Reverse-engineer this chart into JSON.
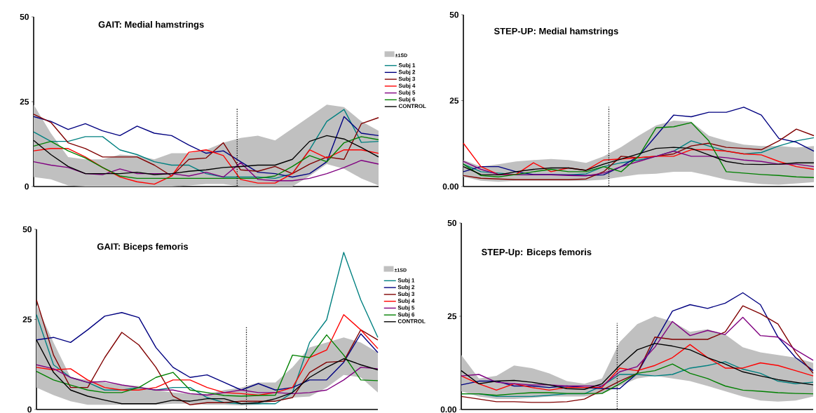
{
  "chart_data": [
    {
      "type": "line",
      "title": "GAIT: Medial hamstrings",
      "annotations": [
        "±1SD"
      ],
      "categories": [
        null,
        null,
        null,
        null,
        null,
        null,
        null,
        null,
        null,
        null,
        null,
        null,
        null,
        null,
        null,
        null,
        null,
        null,
        null,
        null,
        null
      ],
      "ylim": [
        0,
        50
      ],
      "yticks": [
        0,
        25,
        50
      ],
      "tick_labels": "y",
      "legend": "right",
      "series": [
        {
          "name": "Subj 1",
          "color": "#008080",
          "values": [
            16.1,
            13.3,
            13.3,
            14.7,
            14.7,
            10.8,
            9.4,
            7.3,
            6.3,
            6.3,
            3.8,
            2.8,
            2.8,
            2.8,
            2.4,
            3.8,
            10.8,
            19.2,
            22.7,
            13,
            13.3
          ]
        },
        {
          "name": "Subj 2",
          "color": "#000080",
          "values": [
            20.6,
            19.2,
            16.8,
            18.5,
            16.4,
            15,
            17.8,
            15.7,
            15,
            12.2,
            9.8,
            10.5,
            7.3,
            4.2,
            3.8,
            2.8,
            3.8,
            7.3,
            20.6,
            15.7,
            15
          ]
        },
        {
          "name": "Subj 3",
          "color": "#800000",
          "values": [
            21.3,
            18.9,
            12.9,
            11.2,
            8.7,
            8.7,
            8.7,
            6.3,
            3.1,
            8,
            8.4,
            12.9,
            4.9,
            4.5,
            5.9,
            3.8,
            6.6,
            8.7,
            8,
            18.5,
            20.3
          ]
        },
        {
          "name": "Subj 4",
          "color": "#ff0000",
          "values": [
            10.5,
            11.2,
            11.2,
            8.7,
            5.6,
            2.8,
            1.4,
            0.7,
            3.1,
            10.1,
            10.8,
            9.1,
            2.1,
            1,
            1,
            3.8,
            10.8,
            8.4,
            10.8,
            10.8,
            9.8
          ]
        },
        {
          "name": "Subj 5",
          "color": "#800080",
          "values": [
            7.3,
            6.3,
            5.6,
            3.8,
            3.5,
            5.2,
            3.8,
            3.8,
            3.8,
            3.1,
            4.2,
            2.8,
            7,
            2.1,
            1.7,
            1.7,
            2.4,
            3.8,
            5.6,
            7.7,
            6.6
          ]
        },
        {
          "name": "Subj 6",
          "color": "#008000",
          "values": [
            11.9,
            13.3,
            10.5,
            8.4,
            5.6,
            3.1,
            2.4,
            2.4,
            2.4,
            2.4,
            2.4,
            2.4,
            2.4,
            2.4,
            3.1,
            5.9,
            9.1,
            7.3,
            12.9,
            14.7,
            13.8
          ]
        },
        {
          "name": "CONTROL",
          "color": "#000000",
          "values": [
            13.6,
            9.4,
            5.9,
            3.8,
            3.8,
            3.8,
            4.2,
            3.5,
            3.8,
            4.5,
            4.9,
            5.6,
            5.9,
            6.3,
            6.3,
            8,
            13.3,
            15,
            14,
            11.5,
            8.7
          ],
          "upper": [
            24.1,
            15.7,
            8.7,
            8,
            8,
            9.4,
            9.1,
            8,
            9.8,
            9.8,
            10.8,
            12.9,
            14.3,
            15,
            13.6,
            17.1,
            20.6,
            24.1,
            23.4,
            19.2,
            16.4
          ],
          "lower": [
            2.8,
            2.1,
            0.3,
            0,
            0,
            0,
            0,
            0,
            0,
            0.3,
            0.7,
            0.7,
            0,
            0,
            0,
            0,
            3.1,
            6.6,
            5.2,
            2.4,
            0.3
          ]
        }
      ]
    },
    {
      "type": "line",
      "title": "STEP-UP: Medial hamstrings",
      "categories": [
        null,
        null,
        null,
        null,
        null,
        null,
        null,
        null,
        null,
        null,
        null,
        null,
        null,
        null,
        null,
        null,
        null,
        null,
        null,
        null,
        null
      ],
      "ylim": [
        0,
        50
      ],
      "yticks": [
        {
          "value": 0,
          "label": "0.00"
        },
        25,
        50
      ],
      "tick_labels": "y",
      "series": [
        {
          "color": "#008080",
          "values": [
            6.5,
            4.3,
            3.9,
            3.5,
            3.4,
            3.4,
            3.4,
            3.7,
            5.8,
            6.9,
            7.7,
            8.8,
            10.3,
            13.3,
            11.8,
            10.3,
            9.5,
            9.9,
            11.8,
            13.3,
            14.2
          ]
        },
        {
          "color": "#000080",
          "values": [
            4.3,
            5.8,
            5.8,
            4.3,
            3.5,
            3.5,
            3.4,
            3.2,
            3.4,
            5.8,
            8.8,
            14.8,
            20.8,
            20.3,
            21.6,
            21.6,
            23.1,
            20.8,
            14,
            12.9,
            10.3
          ]
        },
        {
          "color": "#800000",
          "values": [
            3.2,
            2.4,
            2.2,
            2,
            2,
            2,
            2,
            2.2,
            4.3,
            8.8,
            8.4,
            8.8,
            9.5,
            11.8,
            12.6,
            11.4,
            11.1,
            10.7,
            13.3,
            16.7,
            14.8
          ]
        },
        {
          "color": "#ff0000",
          "values": [
            12.6,
            5.8,
            3.5,
            3.5,
            6.9,
            4.3,
            5.4,
            4.7,
            7.7,
            8,
            8.4,
            8.8,
            8.8,
            10.7,
            10.7,
            10.3,
            9.5,
            9.2,
            7.3,
            5.8,
            5
          ]
        },
        {
          "color": "#800080",
          "values": [
            7.3,
            5,
            3.5,
            3.4,
            3.4,
            3.4,
            3.2,
            3.1,
            3.9,
            5.8,
            7.3,
            8.8,
            10.3,
            8.8,
            8.8,
            8.4,
            7.7,
            7.3,
            6.5,
            6.5,
            5.8
          ]
        },
        {
          "color": "#008000",
          "values": [
            6.5,
            3.2,
            2.8,
            3.5,
            4.3,
            5,
            4.3,
            4.3,
            5.8,
            4.3,
            8.8,
            17.1,
            17.4,
            18.6,
            13.3,
            4.3,
            3.9,
            3.5,
            3.2,
            2.8,
            2.6
          ]
        },
        {
          "color": "#000000",
          "values": [
            5.8,
            3.5,
            3.4,
            4.3,
            5,
            5.4,
            5.4,
            4.7,
            6.5,
            8,
            9.5,
            11.1,
            11.4,
            11.1,
            9.2,
            7.3,
            6.5,
            6.4,
            6.5,
            6.9,
            6.9
          ],
          "upper": [
            7.7,
            5.8,
            6.5,
            7.3,
            7.7,
            8,
            7.7,
            6.9,
            8.8,
            11.5,
            14.8,
            17.8,
            19.2,
            18.9,
            14.8,
            13.3,
            12.2,
            11.8,
            11.8,
            11.4,
            11.8
          ],
          "lower": [
            2.8,
            1.7,
            1.4,
            1.7,
            1.7,
            1.7,
            1.7,
            1.7,
            2,
            2.8,
            3.5,
            3.7,
            4.3,
            4.3,
            3.2,
            2,
            1.3,
            0.7,
            0.5,
            0.9,
            1.3
          ]
        }
      ]
    },
    {
      "type": "line",
      "title": "GAIT: Biceps femoris",
      "annotations": [
        "±1SD"
      ],
      "categories": [
        null,
        null,
        null,
        null,
        null,
        null,
        null,
        null,
        null,
        null,
        null,
        null,
        null,
        null,
        null,
        null,
        null,
        null,
        null,
        null,
        null
      ],
      "ylim": [
        0,
        50
      ],
      "yticks": [
        0,
        25,
        50
      ],
      "tick_labels": "y",
      "legend": "right",
      "series": [
        {
          "name": "Subj 1",
          "color": "#008080",
          "values": [
            26.3,
            12.4,
            8.9,
            7.5,
            5.4,
            5.4,
            6.1,
            5.4,
            6.1,
            6.1,
            3.3,
            1.9,
            1.6,
            1.6,
            1.6,
            4.7,
            18.6,
            24.9,
            43.6,
            30.4,
            20
          ]
        },
        {
          "name": "Subj 2",
          "color": "#000080",
          "values": [
            19.3,
            20,
            18.6,
            22.1,
            25.9,
            26.9,
            25.5,
            17.2,
            11.7,
            8.9,
            9.6,
            7.5,
            5.4,
            7.2,
            5.4,
            6.1,
            8.2,
            8.2,
            13.1,
            21,
            15.8
          ]
        },
        {
          "name": "Subj 3",
          "color": "#800000",
          "values": [
            30.4,
            15.1,
            6.1,
            6.1,
            14.4,
            21.4,
            17.9,
            11.7,
            3.7,
            1.3,
            1.9,
            1.9,
            2.3,
            2.3,
            2.3,
            3.3,
            10.3,
            13.1,
            13.4,
            22.1,
            19.3
          ]
        },
        {
          "name": "Subj 4",
          "color": "#ff0000",
          "values": [
            11.7,
            11,
            11.3,
            8.2,
            6.1,
            5.4,
            5.4,
            6.1,
            8.2,
            8.2,
            6.1,
            4.7,
            4.4,
            4,
            4.7,
            6.1,
            14.4,
            16.5,
            26.3,
            22.1,
            16.9
          ]
        },
        {
          "name": "Subj 5",
          "color": "#800080",
          "values": [
            12.4,
            11.3,
            8.9,
            7.5,
            7.8,
            6.8,
            6.1,
            5.4,
            5.4,
            4.4,
            4,
            4.7,
            5.4,
            4.7,
            4.7,
            4.4,
            4.7,
            5.4,
            8.2,
            11.7,
            11.3
          ]
        },
        {
          "name": "Subj 6",
          "color": "#008000",
          "values": [
            10.6,
            8.2,
            6.8,
            5.4,
            4.7,
            4.7,
            6.1,
            8.9,
            10.3,
            5.4,
            4.7,
            3.9,
            3.7,
            3.9,
            4,
            15.1,
            14.4,
            20.7,
            15.1,
            8.2,
            8
          ]
        },
        {
          "name": "CONTROL",
          "color": "#000000",
          "values": [
            19.3,
            10.3,
            5.4,
            3.7,
            2.6,
            1.6,
            1.6,
            1.6,
            2.6,
            2.3,
            3,
            3,
            1.6,
            1.9,
            3,
            4.7,
            8.9,
            11.7,
            14.1,
            12.4,
            11
          ],
          "upper": [
            29,
            18.6,
            8.9,
            8.2,
            7.5,
            6.8,
            6.5,
            5.4,
            4.7,
            4.4,
            4.4,
            5.4,
            6.1,
            7.5,
            7.5,
            11.7,
            17.2,
            18.6,
            20,
            18.6,
            15.8
          ],
          "lower": [
            6.1,
            4,
            2.3,
            1.3,
            1.3,
            1.3,
            1.3,
            1.3,
            1.6,
            1.6,
            1.3,
            1.3,
            1.1,
            1.3,
            2.3,
            3.3,
            3.6,
            6.1,
            9.6,
            8.9,
            4.7
          ]
        }
      ]
    },
    {
      "type": "line",
      "title": "STEP-Up: Biceps femoris",
      "categories": [
        null,
        null,
        null,
        null,
        null,
        null,
        null,
        null,
        null,
        null,
        null,
        null,
        null,
        null,
        null,
        null,
        null,
        null,
        null,
        null,
        null
      ],
      "ylim": [
        0,
        50
      ],
      "yticks": [
        {
          "value": 0,
          "label": "0.00"
        },
        25,
        50
      ],
      "tick_labels": "y",
      "series": [
        {
          "color": "#008080",
          "values": [
            4.2,
            4.2,
            3.5,
            3.5,
            3.5,
            3.8,
            4.2,
            4.2,
            6.3,
            9.4,
            9.4,
            9,
            9.4,
            11.1,
            11.8,
            12.8,
            10.8,
            9.7,
            7.6,
            6.9,
            7.3
          ]
        },
        {
          "color": "#000080",
          "values": [
            6.6,
            7.6,
            7.6,
            6.3,
            6.3,
            5.9,
            6.3,
            5.9,
            5.6,
            5.6,
            9.7,
            18.1,
            26.4,
            28.1,
            27.1,
            28.5,
            31.3,
            28.1,
            19.4,
            13.9,
            10.4
          ]
        },
        {
          "color": "#800000",
          "values": [
            3.5,
            2.8,
            2.1,
            2.1,
            1.9,
            1.9,
            2.1,
            2.8,
            5.2,
            7.6,
            9.7,
            19.4,
            18.8,
            18.8,
            18.8,
            20.8,
            27.8,
            25.7,
            22.9,
            15.3,
            9.7
          ]
        },
        {
          "color": "#ff0000",
          "values": [
            9,
            6.9,
            5.2,
            6.9,
            5.9,
            5.2,
            5.9,
            5.9,
            5.9,
            11.1,
            10.4,
            11.8,
            13.9,
            17.4,
            13.9,
            11.1,
            11.1,
            12.5,
            11.8,
            10.4,
            9
          ]
        },
        {
          "color": "#800080",
          "values": [
            9,
            9.4,
            7.3,
            6.9,
            6.6,
            6.6,
            6.3,
            6.3,
            6.3,
            10.1,
            11.5,
            16.7,
            23.6,
            19.8,
            21.2,
            20.1,
            24.7,
            19.8,
            19.4,
            16,
            13.2
          ]
        },
        {
          "color": "#008000",
          "values": [
            4.2,
            4.2,
            3.8,
            4.2,
            4.5,
            4.5,
            4.3,
            4.3,
            4.3,
            6.9,
            9.7,
            10.4,
            12.2,
            9.7,
            8.3,
            6.3,
            5.2,
            4.9,
            4.5,
            4.3,
            4.2
          ]
        },
        {
          "color": "#000000",
          "values": [
            10.4,
            6.9,
            7.6,
            7.8,
            7.3,
            6.6,
            5.6,
            5.4,
            6.9,
            11.8,
            16,
            17.7,
            17,
            16,
            13.9,
            12.2,
            10.1,
            9,
            8,
            7.3,
            6.6
          ],
          "upper": [
            14.6,
            8.3,
            9,
            11.8,
            11.1,
            9.7,
            7.6,
            6.9,
            8.3,
            18.1,
            22.9,
            25,
            23.6,
            20.8,
            21.5,
            20.1,
            16.7,
            15.3,
            14.6,
            13.9,
            12.5
          ],
          "lower": [
            4.9,
            3.5,
            2.8,
            2.8,
            3.1,
            3.5,
            3.5,
            3.5,
            4.2,
            6.3,
            8.3,
            9,
            8.3,
            7.6,
            6.3,
            4.9,
            3.5,
            2.4,
            2.1,
            2.4,
            3.5
          ]
        }
      ]
    }
  ]
}
